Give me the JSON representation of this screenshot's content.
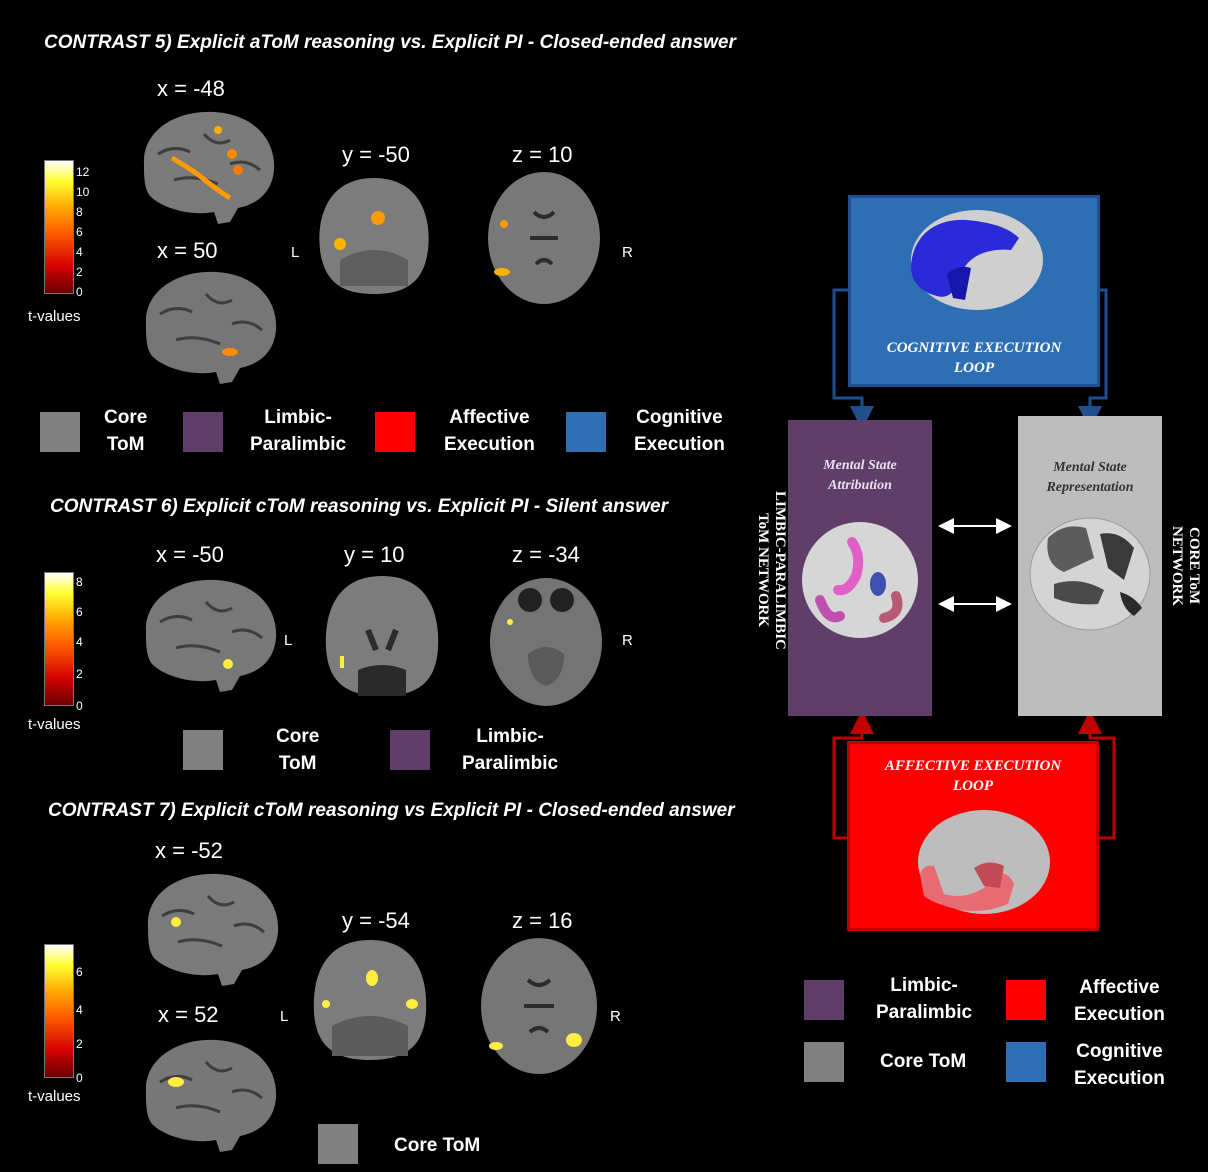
{
  "colors": {
    "background": "#000000",
    "core_tom": "#808080",
    "limbic_paralimbic": "#5f3f6a",
    "affective_execution": "#ff0000",
    "cognitive_execution": "#2e6fb4",
    "brain_glass": "#cfcfcf",
    "arrow_blue": "#1f4f8f",
    "arrow_red": "#c00000"
  },
  "contrast5": {
    "title": "CONTRAST 5) Explicit aToM reasoning vs. Explicit PI  - Closed-ended answer",
    "slice_x1": "x = -48",
    "slice_x2": "x = 50",
    "slice_y": "y = -50",
    "slice_z": "z = 10",
    "left": "L",
    "right": "R",
    "colorbar": {
      "ticks": [
        "12",
        "10",
        "8",
        "6",
        "4",
        "2",
        "0"
      ],
      "label": "t-values"
    },
    "legend": [
      "Core\nToM",
      "Limbic-\nParalimbic",
      "Affective\nExecution",
      "Cognitive\nExecution"
    ]
  },
  "contrast6": {
    "title": "CONTRAST 6) Explicit cToM reasoning  vs. Explicit PI -  Silent answer",
    "slice_x": "x = -50",
    "slice_y": "y = 10",
    "slice_z": "z = -34",
    "left": "L",
    "right": "R",
    "colorbar": {
      "ticks": [
        "8",
        "6",
        "4",
        "2",
        "0"
      ],
      "label": "t-values"
    },
    "legend": [
      "Core\nToM",
      "Limbic-\nParalimbic"
    ]
  },
  "contrast7": {
    "title": "CONTRAST 7) Explicit cToM reasoning vs Explicit PI -  Closed-ended answer",
    "slice_x1": "x = -52",
    "slice_x2": "x = 52",
    "slice_y": "y = -54",
    "slice_z": "z = 16",
    "left": "L",
    "right": "R",
    "colorbar": {
      "ticks": [
        "6",
        "4",
        "2",
        "0"
      ],
      "label": "t-values"
    },
    "legend": [
      "Core ToM"
    ]
  },
  "model": {
    "cognitive_loop": "COGNITIVE EXECUTION\nLOOP",
    "affective_loop": "AFFECTIVE EXECUTION\nLOOP",
    "mental_state_attribution": "Mental State\nAttribution",
    "mental_state_representation": "Mental State\nRepresentation",
    "limbic_network": "LIMBIC-PARALIMBIC\nToM NETWORK",
    "core_network": "CORE ToM\nNETWORK",
    "legend": [
      "Limbic-\nParalimbic",
      "Affective\nExecution",
      "Core ToM",
      "Cognitive\nExecution"
    ]
  }
}
